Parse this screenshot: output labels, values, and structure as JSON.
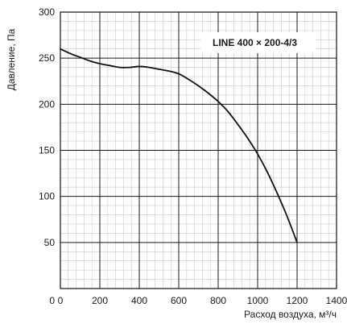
{
  "chart_data": {
    "type": "line",
    "title": "",
    "xlabel": "Расход воздуха, м³/ч",
    "ylabel": "Давление, Па",
    "xlim": [
      0,
      1400
    ],
    "ylim": [
      0,
      300
    ],
    "xticks": [
      0,
      200,
      400,
      600,
      800,
      1000,
      1200,
      1400
    ],
    "yticks": [
      50,
      100,
      150,
      200,
      250,
      300
    ],
    "grid": true,
    "minor_grid": true,
    "legend_position": "top-right",
    "series": [
      {
        "name": "LINE 400 × 200-4/3",
        "color": "#111111",
        "x": [
          0,
          50,
          100,
          150,
          200,
          250,
          300,
          350,
          400,
          450,
          500,
          550,
          600,
          650,
          700,
          750,
          800,
          850,
          900,
          950,
          1000,
          1050,
          1100,
          1150,
          1200
        ],
        "y": [
          260,
          255,
          251,
          247,
          244,
          242,
          240,
          240,
          241,
          240,
          238,
          236,
          233,
          227,
          220,
          212,
          203,
          192,
          178,
          163,
          146,
          126,
          103,
          78,
          50
        ]
      }
    ]
  }
}
